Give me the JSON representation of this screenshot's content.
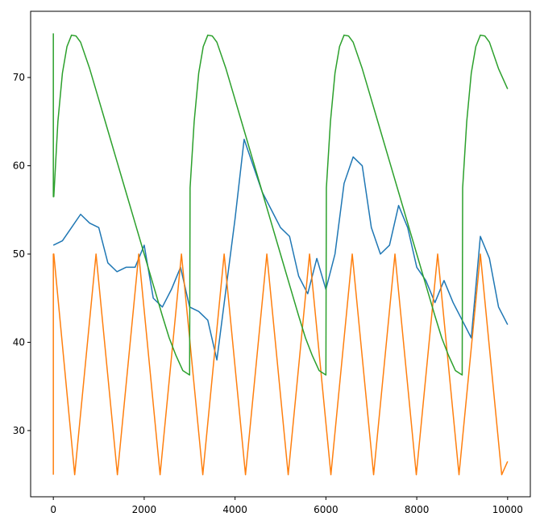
{
  "chart_data": {
    "type": "line",
    "title": "",
    "xlabel": "",
    "ylabel": "",
    "xlim": [
      -500,
      10500
    ],
    "ylim": [
      22.5,
      77.5
    ],
    "grid": false,
    "x_ticks": [
      0,
      2000,
      4000,
      6000,
      8000,
      10000
    ],
    "y_ticks": [
      30,
      40,
      50,
      60,
      70
    ],
    "series": [
      {
        "color": "#1f77b4",
        "x": [
          0,
          200,
          400,
          600,
          800,
          1000,
          1200,
          1400,
          1600,
          1800,
          2000,
          2200,
          2400,
          2600,
          2800,
          3000,
          3200,
          3400,
          3600,
          3800,
          4000,
          4200,
          4400,
          4600,
          4800,
          5000,
          5200,
          5400,
          5600,
          5800,
          6000,
          6200,
          6400,
          6600,
          6800,
          7000,
          7200,
          7400,
          7600,
          7800,
          8000,
          8200,
          8400,
          8600,
          8800,
          9000,
          9200,
          9400,
          9600,
          9800,
          10000
        ],
        "y": [
          51,
          51.5,
          53,
          54.5,
          53.5,
          53,
          49,
          48,
          48.5,
          48.5,
          51,
          45,
          44,
          46,
          48.5,
          44,
          43.5,
          42.5,
          38,
          46,
          54,
          63,
          60,
          57,
          55,
          53,
          52,
          47.5,
          45.5,
          49.5,
          46,
          50,
          58,
          61,
          60,
          53,
          50,
          51,
          55.5,
          53,
          48.5,
          47,
          44.5,
          47,
          44.5,
          42.5,
          40.5,
          52,
          49.5,
          44,
          42
        ]
      },
      {
        "color": "#ff7f0e",
        "x": [
          0,
          0,
          10,
          470,
          940,
          1410,
          1880,
          2350,
          2820,
          3290,
          3760,
          4230,
          4700,
          5170,
          5640,
          6110,
          6580,
          7050,
          7520,
          7990,
          8460,
          8930,
          9400,
          9870,
          10000
        ],
        "y": [
          25,
          50,
          50,
          25,
          50,
          25,
          50,
          25,
          50,
          25,
          50,
          25,
          50,
          25,
          50,
          25,
          50,
          25,
          50,
          25,
          50,
          25,
          50,
          25,
          26.5
        ]
      },
      {
        "color": "#2ca02c",
        "x": [
          0,
          0,
          10,
          100,
          200,
          300,
          400,
          500,
          600,
          800,
          1000,
          1200,
          1400,
          1600,
          1800,
          2000,
          2200,
          2400,
          2550,
          2700,
          2850,
          3000,
          3000,
          3010,
          3100,
          3200,
          3300,
          3400,
          3500,
          3600,
          3800,
          4000,
          4200,
          4400,
          4600,
          4800,
          5000,
          5200,
          5400,
          5550,
          5700,
          5850,
          6000,
          6000,
          6010,
          6100,
          6200,
          6300,
          6400,
          6500,
          6600,
          6800,
          7000,
          7200,
          7400,
          7600,
          7800,
          8000,
          8200,
          8400,
          8550,
          8700,
          8850,
          9000,
          9000,
          9010,
          9100,
          9200,
          9300,
          9400,
          9500,
          9600,
          9800,
          10000
        ],
        "y": [
          75,
          56.5,
          56.5,
          65,
          70.5,
          73.5,
          74.8,
          74.7,
          74,
          71,
          67.5,
          64,
          60.5,
          57,
          53.5,
          50,
          46.5,
          43,
          40.5,
          38.5,
          36.8,
          36.3,
          36.3,
          57.5,
          65,
          70.5,
          73.5,
          74.8,
          74.7,
          74,
          71,
          67.5,
          64,
          60.5,
          57,
          53.5,
          50,
          46.5,
          43,
          40.5,
          38.5,
          36.8,
          36.3,
          36.3,
          57.5,
          65,
          70.5,
          73.5,
          74.8,
          74.7,
          74,
          71,
          67.5,
          64,
          60.5,
          57,
          53.5,
          50,
          46.5,
          43,
          40.5,
          38.5,
          36.8,
          36.3,
          36.3,
          57.5,
          65,
          70.5,
          73.5,
          74.8,
          74.7,
          74,
          71,
          68.7
        ]
      }
    ]
  }
}
